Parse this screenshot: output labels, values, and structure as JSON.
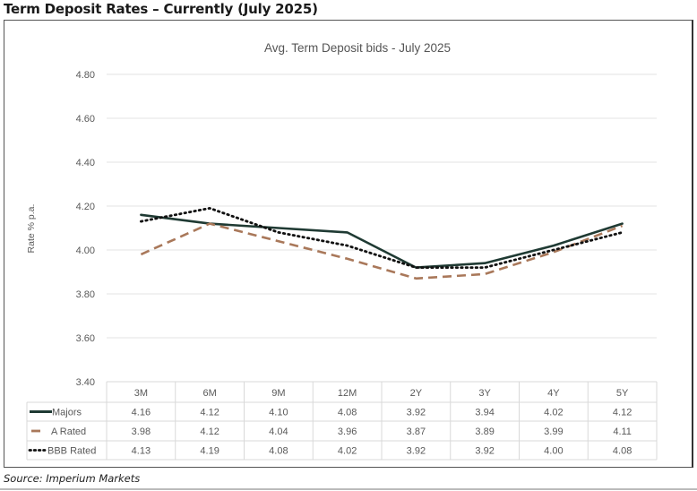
{
  "page": {
    "title": "Term Deposit Rates – Currently (July 2025)",
    "source": "Source: Imperium Markets"
  },
  "colors": {
    "majors": "#1f3a33",
    "a_rated": "#a9785a",
    "bbb_rated": "#111111",
    "gridline": "#e3e3e3",
    "table_border": "#d9d9d9"
  },
  "chart_data": {
    "type": "line",
    "title": "Avg. Term Deposit bids - July 2025",
    "xlabel": "",
    "ylabel": "Rate % p.a.",
    "ylim": [
      3.4,
      4.8
    ],
    "yticks": [
      "4.80",
      "4.60",
      "4.40",
      "4.20",
      "4.00",
      "3.80",
      "3.60",
      "3.40"
    ],
    "ytick_values": [
      4.8,
      4.6,
      4.4,
      4.2,
      4.0,
      3.8,
      3.6,
      3.4
    ],
    "grid": true,
    "legend": "data-table-below",
    "categories": [
      "3M",
      "6M",
      "9M",
      "12M",
      "2Y",
      "3Y",
      "4Y",
      "5Y"
    ],
    "series": [
      {
        "name": "Majors",
        "style": "solid",
        "color": "#1f3a33",
        "values": [
          4.16,
          4.12,
          4.1,
          4.08,
          3.92,
          3.94,
          4.02,
          4.12
        ],
        "labels": [
          "4.16",
          "4.12",
          "4.10",
          "4.08",
          "3.92",
          "3.94",
          "4.02",
          "4.12"
        ]
      },
      {
        "name": "A Rated",
        "style": "dashed",
        "color": "#a9785a",
        "values": [
          3.98,
          4.12,
          4.04,
          3.96,
          3.87,
          3.89,
          3.99,
          4.11
        ],
        "labels": [
          "3.98",
          "4.12",
          "4.04",
          "3.96",
          "3.87",
          "3.89",
          "3.99",
          "4.11"
        ]
      },
      {
        "name": "BBB Rated",
        "style": "dotted",
        "color": "#111111",
        "values": [
          4.13,
          4.19,
          4.08,
          4.02,
          3.92,
          3.92,
          4.0,
          4.08
        ],
        "labels": [
          "4.13",
          "4.19",
          "4.08",
          "4.02",
          "3.92",
          "3.92",
          "4.00",
          "4.08"
        ]
      }
    ]
  }
}
